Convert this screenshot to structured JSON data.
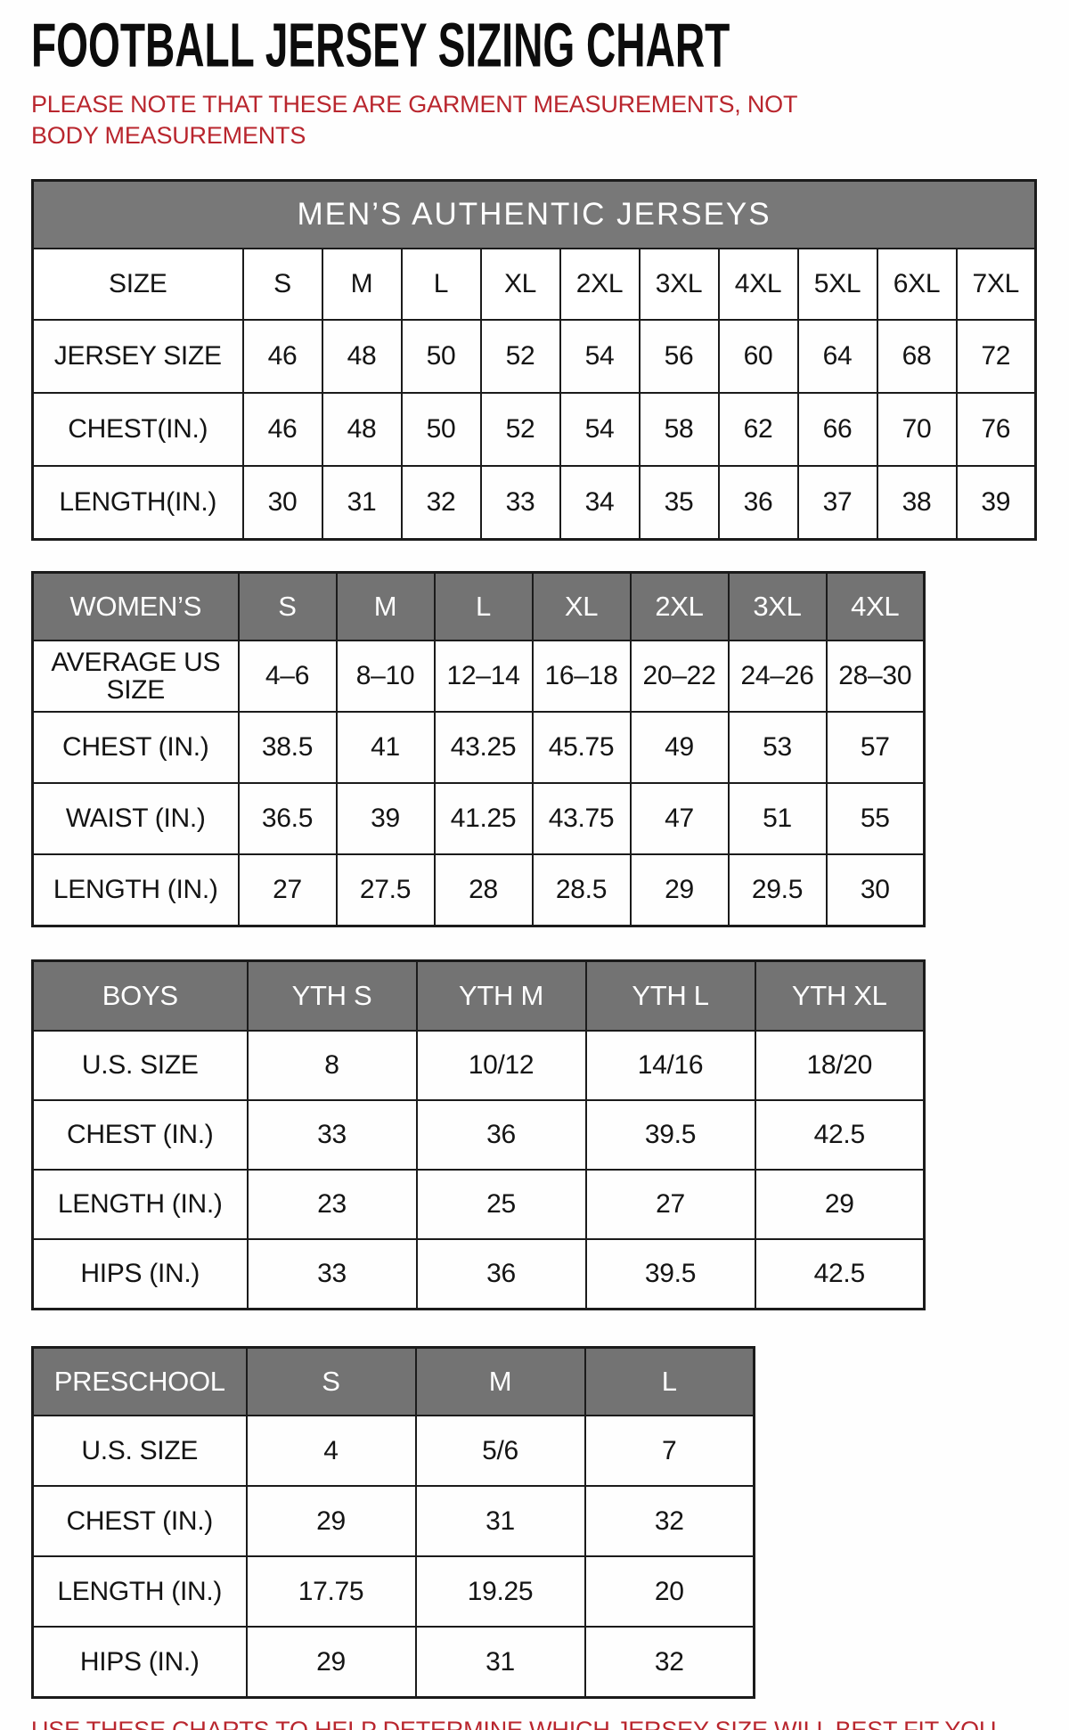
{
  "page": {
    "title": "FOOTBALL JERSEY SIZING CHART",
    "note_top": "PLEASE NOTE THAT THESE ARE GARMENT MEASUREMENTS, NOT BODY MEASUREMENTS",
    "note_bottom": "USE THESE CHARTS TO HELP DETERMINE WHICH JERSEY SIZE WILL BEST FIT YOU.",
    "accent_red": "#b9262e",
    "header_gray": "#737373"
  },
  "tables": [
    {
      "id": "mens",
      "banner": "MEN’S AUTHENTIC JERSEYS",
      "header": [
        "SIZE",
        "S",
        "M",
        "L",
        "XL",
        "2XL",
        "3XL",
        "4XL",
        "5XL",
        "6XL",
        "7XL"
      ],
      "rows": [
        {
          "label": "JERSEY SIZE",
          "values": [
            "46",
            "48",
            "50",
            "52",
            "54",
            "56",
            "60",
            "64",
            "68",
            "72"
          ]
        },
        {
          "label": "CHEST(IN.)",
          "values": [
            "46",
            "48",
            "50",
            "52",
            "54",
            "58",
            "62",
            "66",
            "70",
            "76"
          ]
        },
        {
          "label": "LENGTH(IN.)",
          "values": [
            "30",
            "31",
            "32",
            "33",
            "34",
            "35",
            "36",
            "37",
            "38",
            "39"
          ]
        }
      ]
    },
    {
      "id": "womens",
      "banner": null,
      "header": [
        "WOMEN’S",
        "S",
        "M",
        "L",
        "XL",
        "2XL",
        "3XL",
        "4XL"
      ],
      "rows": [
        {
          "label": "AVERAGE US SIZE",
          "values": [
            "4–6",
            "8–10",
            "12–14",
            "16–18",
            "20–22",
            "24–26",
            "28–30"
          ]
        },
        {
          "label": "CHEST (IN.)",
          "values": [
            "38.5",
            "41",
            "43.25",
            "45.75",
            "49",
            "53",
            "57"
          ]
        },
        {
          "label": "WAIST (IN.)",
          "values": [
            "36.5",
            "39",
            "41.25",
            "43.75",
            "47",
            "51",
            "55"
          ]
        },
        {
          "label": "LENGTH (IN.)",
          "values": [
            "27",
            "27.5",
            "28",
            "28.5",
            "29",
            "29.5",
            "30"
          ]
        }
      ]
    },
    {
      "id": "boys",
      "banner": null,
      "header": [
        "BOYS",
        "YTH S",
        "YTH M",
        "YTH L",
        "YTH XL"
      ],
      "rows": [
        {
          "label": "U.S. SIZE",
          "values": [
            "8",
            "10/12",
            "14/16",
            "18/20"
          ]
        },
        {
          "label": "CHEST (IN.)",
          "values": [
            "33",
            "36",
            "39.5",
            "42.5"
          ]
        },
        {
          "label": "LENGTH (IN.)",
          "values": [
            "23",
            "25",
            "27",
            "29"
          ]
        },
        {
          "label": "HIPS (IN.)",
          "values": [
            "33",
            "36",
            "39.5",
            "42.5"
          ]
        }
      ]
    },
    {
      "id": "preschool",
      "banner": null,
      "header": [
        "PRESCHOOL",
        "S",
        "M",
        "L"
      ],
      "rows": [
        {
          "label": "U.S. SIZE",
          "values": [
            "4",
            "5/6",
            "7"
          ]
        },
        {
          "label": "CHEST (IN.)",
          "values": [
            "29",
            "31",
            "32"
          ]
        },
        {
          "label": "LENGTH (IN.)",
          "values": [
            "17.75",
            "19.25",
            "20"
          ]
        },
        {
          "label": "HIPS (IN.)",
          "values": [
            "29",
            "31",
            "32"
          ]
        }
      ]
    }
  ]
}
